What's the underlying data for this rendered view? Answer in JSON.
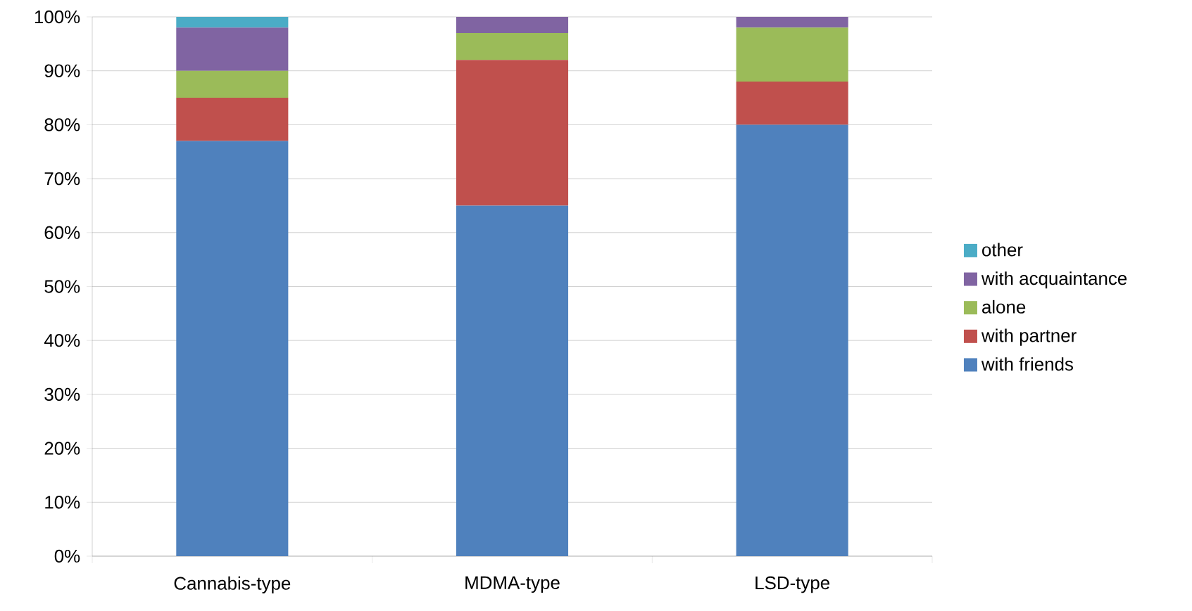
{
  "chart_data": {
    "type": "bar",
    "stacked": true,
    "categories": [
      "Cannabis-type",
      "MDMA-type",
      "LSD-type"
    ],
    "series": [
      {
        "name": "with friends",
        "color": "#4f81bd",
        "values": [
          77,
          65,
          80
        ]
      },
      {
        "name": "with partner",
        "color": "#c0504d",
        "values": [
          8,
          27,
          8
        ]
      },
      {
        "name": "alone",
        "color": "#9bbb59",
        "values": [
          5,
          5,
          10
        ]
      },
      {
        "name": "with acquaintance",
        "color": "#8064a2",
        "values": [
          8,
          3,
          2
        ]
      },
      {
        "name": "other",
        "color": "#4bacc6",
        "values": [
          2,
          0,
          0
        ]
      }
    ],
    "ylim": [
      0,
      100
    ],
    "yticks": [
      {
        "value": 0,
        "label": "0%"
      },
      {
        "value": 10,
        "label": "10%"
      },
      {
        "value": 20,
        "label": "20%"
      },
      {
        "value": 30,
        "label": "30%"
      },
      {
        "value": 40,
        "label": "40%"
      },
      {
        "value": 50,
        "label": "50%"
      },
      {
        "value": 60,
        "label": "60%"
      },
      {
        "value": 70,
        "label": "70%"
      },
      {
        "value": 80,
        "label": "80%"
      },
      {
        "value": 90,
        "label": "90%"
      },
      {
        "value": 100,
        "label": "100%"
      }
    ],
    "grid": "y",
    "legend": "right"
  }
}
